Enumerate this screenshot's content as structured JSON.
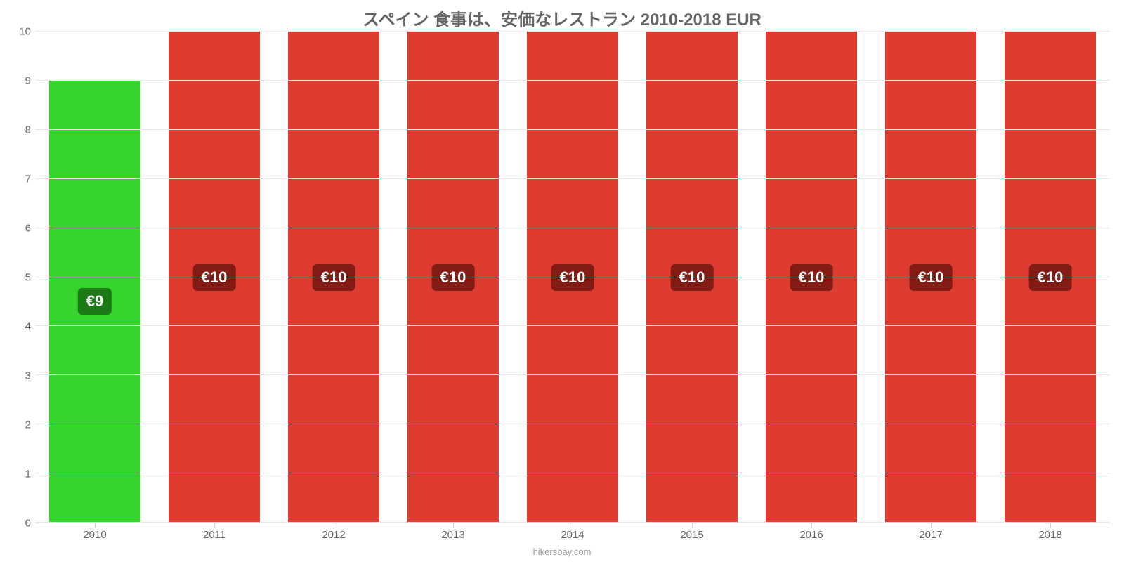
{
  "chart": {
    "type": "bar",
    "title": "スペイン 食事は、安価なレストラン 2010-2018 EUR",
    "title_fontsize": 24,
    "title_color": "#666666",
    "background_color": "#ffffff",
    "grid_color": "#e6e6e6",
    "axis_line_color": "#cccccc",
    "tick_label_color": "#666666",
    "tick_fontsize": 15,
    "bar_width": 0.77,
    "ylim": [
      0,
      10
    ],
    "yticks": [
      0,
      1,
      2,
      3,
      4,
      5,
      6,
      7,
      8,
      9,
      10
    ],
    "categories": [
      "2010",
      "2011",
      "2012",
      "2013",
      "2014",
      "2015",
      "2016",
      "2017",
      "2018"
    ],
    "values": [
      9,
      10,
      10,
      10,
      10,
      10,
      10,
      10,
      10
    ],
    "value_labels": [
      "€9",
      "€10",
      "€10",
      "€10",
      "€10",
      "€10",
      "€10",
      "€10",
      "€10"
    ],
    "bar_colors": [
      "#35d32c",
      "#de3c30",
      "#de3c30",
      "#de3c30",
      "#de3c30",
      "#de3c30",
      "#de3c30",
      "#de3c30",
      "#de3c30"
    ],
    "label_box_colors": [
      "#1b7a16",
      "#841c16",
      "#841c16",
      "#841c16",
      "#841c16",
      "#841c16",
      "#841c16",
      "#841c16",
      "#841c16"
    ],
    "label_text_color": "#ffffff",
    "label_fontsize": 22,
    "attribution": "hikersbay.com",
    "attribution_color": "#999999"
  }
}
